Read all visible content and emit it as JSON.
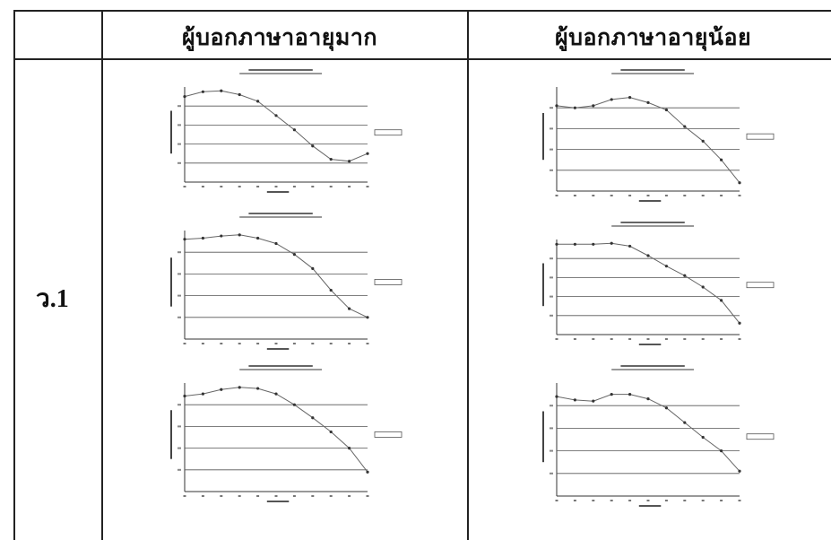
{
  "table": {
    "header": {
      "col1": "",
      "col2": "ผู้บอกภาษาอายุมาก",
      "col3": "ผู้บอกภาษาอายุน้อย"
    },
    "rows": [
      {
        "label": "ว.1",
        "older_charts": [
          {
            "type": "line",
            "values": [
              0.9,
              0.95,
              0.96,
              0.92,
              0.85,
              0.7,
              0.55,
              0.38,
              0.24,
              0.22,
              0.3
            ]
          },
          {
            "type": "line",
            "values": [
              0.92,
              0.93,
              0.95,
              0.96,
              0.93,
              0.88,
              0.78,
              0.65,
              0.45,
              0.28,
              0.2
            ]
          },
          {
            "type": "line",
            "values": [
              0.88,
              0.9,
              0.94,
              0.96,
              0.95,
              0.9,
              0.8,
              0.68,
              0.55,
              0.4,
              0.18
            ]
          }
        ],
        "younger_charts": [
          {
            "type": "line",
            "values": [
              0.82,
              0.8,
              0.82,
              0.88,
              0.9,
              0.85,
              0.78,
              0.62,
              0.48,
              0.3,
              0.08
            ]
          },
          {
            "type": "line",
            "values": [
              0.95,
              0.95,
              0.95,
              0.96,
              0.93,
              0.83,
              0.72,
              0.62,
              0.5,
              0.36,
              0.12
            ]
          },
          {
            "type": "line",
            "values": [
              0.88,
              0.85,
              0.84,
              0.9,
              0.9,
              0.86,
              0.78,
              0.65,
              0.52,
              0.4,
              0.22
            ]
          }
        ]
      }
    ]
  }
}
